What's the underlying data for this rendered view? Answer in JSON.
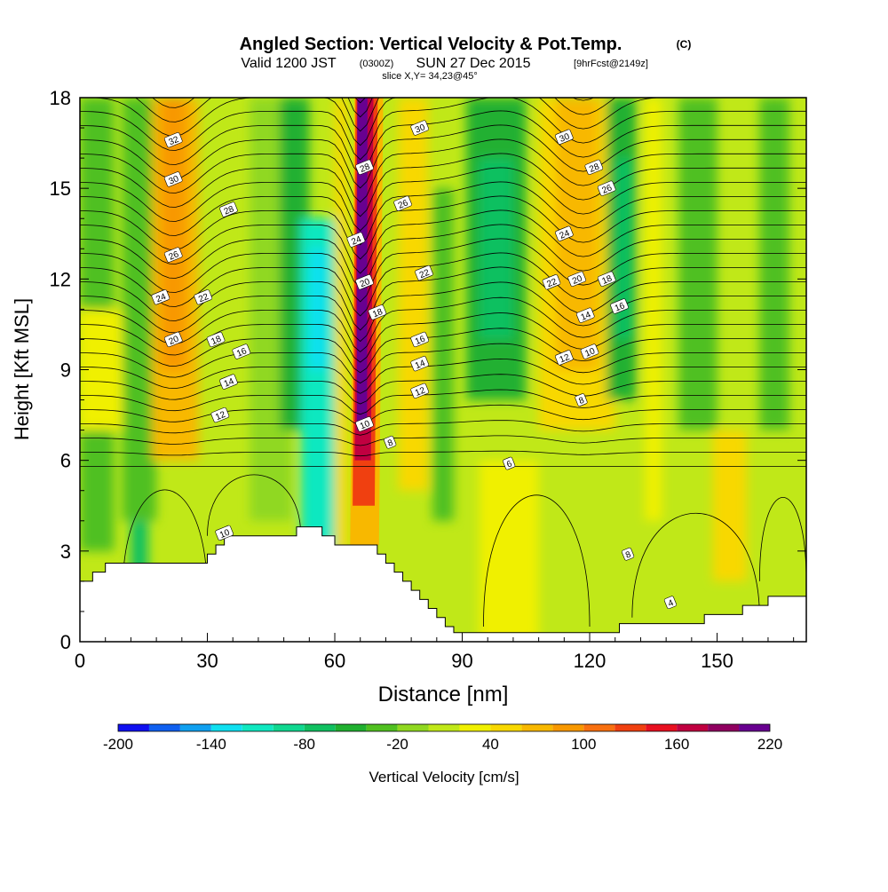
{
  "chart_data": {
    "type": "heatmap",
    "title": "Angled Section: Vertical Velocity & Pot.Temp.",
    "title_suffix": "(C)",
    "subtitle_main": "Valid 1200 JST",
    "subtitle_zulu": "(0300Z)",
    "subtitle_date": "SUN 27 Dec 2015",
    "subtitle_fcst": "[9hrFcst@2149z]",
    "slice_label": "slice X,Y= 34,23@45°",
    "xlabel": "Distance [nm]",
    "ylabel": "Height [Kft MSL]",
    "xlim": [
      0,
      171
    ],
    "ylim": [
      0,
      18
    ],
    "x_ticks": [
      "0",
      "30",
      "60",
      "90",
      "120",
      "150"
    ],
    "x_tick_values": [
      0,
      30,
      60,
      90,
      120,
      150
    ],
    "y_ticks": [
      "0",
      "3",
      "6",
      "9",
      "12",
      "15",
      "18"
    ],
    "y_tick_values": [
      0,
      3,
      6,
      9,
      12,
      15,
      18
    ],
    "colorbar": {
      "label": "Vertical Velocity [cm/s]",
      "tick_labels": [
        "-200",
        "-140",
        "-80",
        "-20",
        "40",
        "100",
        "160",
        "220"
      ],
      "tick_values": [
        -200,
        -140,
        -80,
        -20,
        40,
        100,
        160,
        220
      ],
      "levels": [
        -200,
        -180,
        -160,
        -140,
        -120,
        -100,
        -80,
        -60,
        -40,
        -20,
        0,
        20,
        40,
        60,
        80,
        100,
        120,
        140,
        160,
        180,
        200,
        220
      ],
      "colors": [
        "#1010f0",
        "#1060f0",
        "#10a0f0",
        "#10e0f0",
        "#10e8c0",
        "#10d890",
        "#10c060",
        "#20b030",
        "#50c020",
        "#90d820",
        "#c0e818",
        "#f0f000",
        "#f8d800",
        "#f8b800",
        "#f89800",
        "#f87010",
        "#f04010",
        "#e81020",
        "#c00040",
        "#900060",
        "#680090"
      ]
    },
    "updraft_columns": [
      {
        "x": 22,
        "peak_cm_s": 100
      },
      {
        "x": 66,
        "peak_cm_s": 220
      },
      {
        "x": 120,
        "peak_cm_s": 90
      }
    ],
    "downdraft_columns": [
      {
        "x": 56,
        "peak_cm_s": -140
      },
      {
        "x": 98,
        "peak_cm_s": -60
      },
      {
        "x": 128,
        "peak_cm_s": -80
      }
    ],
    "terrain": [
      [
        0,
        2
      ],
      [
        3,
        2
      ],
      [
        3,
        2.3
      ],
      [
        6,
        2.3
      ],
      [
        6,
        2.6
      ],
      [
        30,
        2.6
      ],
      [
        30,
        2.9
      ],
      [
        32,
        2.9
      ],
      [
        32,
        3.2
      ],
      [
        34,
        3.2
      ],
      [
        34,
        3.5
      ],
      [
        51,
        3.5
      ],
      [
        51,
        3.8
      ],
      [
        57,
        3.8
      ],
      [
        57,
        3.5
      ],
      [
        60,
        3.5
      ],
      [
        60,
        3.2
      ],
      [
        70,
        3.2
      ],
      [
        70,
        2.9
      ],
      [
        72,
        2.9
      ],
      [
        72,
        2.6
      ],
      [
        74,
        2.6
      ],
      [
        74,
        2.3
      ],
      [
        76,
        2.3
      ],
      [
        76,
        2
      ],
      [
        78,
        2
      ],
      [
        78,
        1.7
      ],
      [
        80,
        1.7
      ],
      [
        80,
        1.4
      ],
      [
        82,
        1.4
      ],
      [
        82,
        1.1
      ],
      [
        84,
        1.1
      ],
      [
        84,
        0.8
      ],
      [
        86,
        0.8
      ],
      [
        86,
        0.5
      ],
      [
        88,
        0.5
      ],
      [
        88,
        0.3
      ],
      [
        127,
        0.3
      ],
      [
        127,
        0.6
      ],
      [
        147,
        0.6
      ],
      [
        147,
        0.9
      ],
      [
        156,
        0.9
      ],
      [
        156,
        1.2
      ],
      [
        162,
        1.2
      ],
      [
        162,
        1.5
      ],
      [
        171,
        1.5
      ]
    ],
    "isotherm_labels": [
      {
        "text": "32",
        "x": 22,
        "y": 16.6
      },
      {
        "text": "30",
        "x": 22,
        "y": 15.3
      },
      {
        "text": "28",
        "x": 35,
        "y": 14.3
      },
      {
        "text": "26",
        "x": 22,
        "y": 12.8
      },
      {
        "text": "24",
        "x": 19,
        "y": 11.4
      },
      {
        "text": "22",
        "x": 29,
        "y": 11.4
      },
      {
        "text": "20",
        "x": 22,
        "y": 10.0
      },
      {
        "text": "18",
        "x": 32,
        "y": 10.0
      },
      {
        "text": "16",
        "x": 38,
        "y": 9.6
      },
      {
        "text": "14",
        "x": 35,
        "y": 8.6
      },
      {
        "text": "12",
        "x": 33,
        "y": 7.5
      },
      {
        "text": "10",
        "x": 34,
        "y": 3.6
      },
      {
        "text": "28",
        "x": 67,
        "y": 15.7
      },
      {
        "text": "26",
        "x": 76,
        "y": 14.5
      },
      {
        "text": "24",
        "x": 65,
        "y": 13.3
      },
      {
        "text": "22",
        "x": 81,
        "y": 12.2
      },
      {
        "text": "20",
        "x": 67,
        "y": 11.9
      },
      {
        "text": "18",
        "x": 70,
        "y": 10.9
      },
      {
        "text": "16",
        "x": 80,
        "y": 10.0
      },
      {
        "text": "14",
        "x": 80,
        "y": 9.2
      },
      {
        "text": "12",
        "x": 80,
        "y": 8.3
      },
      {
        "text": "10",
        "x": 67,
        "y": 7.2
      },
      {
        "text": "8",
        "x": 73,
        "y": 6.6
      },
      {
        "text": "30",
        "x": 80,
        "y": 17.0
      },
      {
        "text": "30",
        "x": 114,
        "y": 16.7
      },
      {
        "text": "28",
        "x": 121,
        "y": 15.7
      },
      {
        "text": "26",
        "x": 124,
        "y": 15.0
      },
      {
        "text": "24",
        "x": 114,
        "y": 13.5
      },
      {
        "text": "22",
        "x": 111,
        "y": 11.9
      },
      {
        "text": "20",
        "x": 117,
        "y": 12.0
      },
      {
        "text": "18",
        "x": 124,
        "y": 12.0
      },
      {
        "text": "16",
        "x": 127,
        "y": 11.1
      },
      {
        "text": "14",
        "x": 119,
        "y": 10.8
      },
      {
        "text": "12",
        "x": 114,
        "y": 9.4
      },
      {
        "text": "10",
        "x": 120,
        "y": 9.6
      },
      {
        "text": "8",
        "x": 118,
        "y": 8.0
      },
      {
        "text": "6",
        "x": 101,
        "y": 5.9
      },
      {
        "text": "8",
        "x": 129,
        "y": 2.9
      },
      {
        "text": "4",
        "x": 139,
        "y": 1.3
      }
    ]
  }
}
